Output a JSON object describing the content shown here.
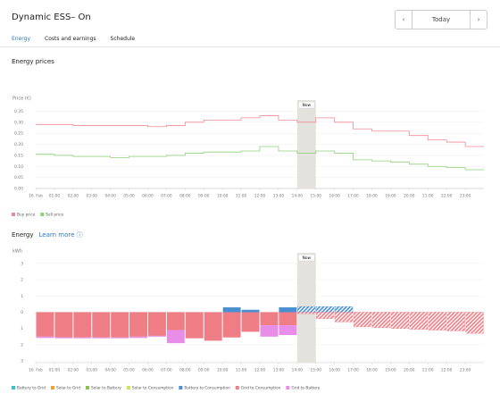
{
  "header": {
    "title": "Dynamic ESS– On",
    "prev": "‹",
    "date": "Today",
    "next": "›"
  },
  "tabs": [
    "Energy",
    "Costs and earnings",
    "Schedule"
  ],
  "sections": {
    "prices": "Energy prices",
    "energy": "Energy",
    "learn_more": "Learn more ⓘ"
  },
  "chart_data": [
    {
      "type": "line",
      "ylabel": "Price (€)",
      "now": {
        "label": "Now",
        "x": 14
      },
      "x": [
        0,
        1,
        2,
        3,
        4,
        5,
        6,
        7,
        8,
        9,
        10,
        11,
        12,
        13,
        14,
        15,
        16,
        17,
        18,
        19,
        20,
        21,
        22,
        23
      ],
      "xlim": [
        0,
        24
      ],
      "xticks": [
        {
          "value": 0,
          "label": "16. Feb"
        },
        {
          "value": 1,
          "label": "01:00"
        },
        {
          "value": 2,
          "label": "02:00"
        },
        {
          "value": 3,
          "label": "03:00"
        },
        {
          "value": 4,
          "label": "04:00"
        },
        {
          "value": 5,
          "label": "05:00"
        },
        {
          "value": 6,
          "label": "06:00"
        },
        {
          "value": 7,
          "label": "07:00"
        },
        {
          "value": 8,
          "label": "08:00"
        },
        {
          "value": 9,
          "label": "09:00"
        },
        {
          "value": 10,
          "label": "10:00"
        },
        {
          "value": 11,
          "label": "11:00"
        },
        {
          "value": 12,
          "label": "12:00"
        },
        {
          "value": 13,
          "label": "13:00"
        },
        {
          "value": 14,
          "label": "14:00"
        },
        {
          "value": 15,
          "label": "15:00"
        },
        {
          "value": 16,
          "label": "16:00"
        },
        {
          "value": 17,
          "label": "17:00"
        },
        {
          "value": 18,
          "label": "18:00"
        },
        {
          "value": 19,
          "label": "19:00"
        },
        {
          "value": 20,
          "label": "20:00"
        },
        {
          "value": 21,
          "label": "21:00"
        },
        {
          "value": 22,
          "label": "22:00"
        },
        {
          "value": 23,
          "label": "23:00"
        }
      ],
      "ylim": [
        0,
        0.36
      ],
      "yticks": [
        {
          "value": 0,
          "label": "0.00"
        },
        {
          "value": 0.05,
          "label": "0.05"
        },
        {
          "value": 0.1,
          "label": "0.10"
        },
        {
          "value": 0.15,
          "label": "0.15"
        },
        {
          "value": 0.2,
          "label": "0.20"
        },
        {
          "value": 0.25,
          "label": "0.25"
        },
        {
          "value": 0.3,
          "label": "0.30"
        },
        {
          "value": 0.35,
          "label": "0.35"
        }
      ],
      "grid": true,
      "series": [
        {
          "name": "Buy price",
          "color": "#f08a96",
          "values": [
            0.29,
            0.29,
            0.285,
            0.285,
            0.285,
            0.285,
            0.28,
            0.285,
            0.3,
            0.31,
            0.31,
            0.32,
            0.33,
            0.31,
            0.3,
            0.32,
            0.3,
            0.27,
            0.26,
            0.26,
            0.24,
            0.22,
            0.21,
            0.19
          ]
        },
        {
          "name": "Sell price",
          "color": "#8fd07a",
          "values": [
            0.155,
            0.15,
            0.145,
            0.145,
            0.14,
            0.145,
            0.145,
            0.15,
            0.16,
            0.165,
            0.165,
            0.17,
            0.19,
            0.17,
            0.16,
            0.17,
            0.16,
            0.13,
            0.125,
            0.12,
            0.11,
            0.1,
            0.095,
            0.085
          ]
        }
      ]
    },
    {
      "type": "bar",
      "stacked": true,
      "ylabel": "kWh",
      "now": {
        "label": "Now",
        "x": 14
      },
      "x": [
        0,
        1,
        2,
        3,
        4,
        5,
        6,
        7,
        8,
        9,
        10,
        11,
        12,
        13,
        14,
        15,
        16,
        17,
        18,
        19,
        20,
        21,
        22,
        23
      ],
      "xlim": [
        0,
        24
      ],
      "xticks": [
        {
          "value": 0,
          "label": "16. Feb"
        },
        {
          "value": 1,
          "label": "01:00"
        },
        {
          "value": 2,
          "label": "02:00"
        },
        {
          "value": 3,
          "label": "03:00"
        },
        {
          "value": 4,
          "label": "04:00"
        },
        {
          "value": 5,
          "label": "05:00"
        },
        {
          "value": 6,
          "label": "06:00"
        },
        {
          "value": 7,
          "label": "07:00"
        },
        {
          "value": 8,
          "label": "08:00"
        },
        {
          "value": 9,
          "label": "09:00"
        },
        {
          "value": 10,
          "label": "10:00"
        },
        {
          "value": 11,
          "label": "11:00"
        },
        {
          "value": 12,
          "label": "12:00"
        },
        {
          "value": 13,
          "label": "13:00"
        },
        {
          "value": 14,
          "label": "14:00"
        },
        {
          "value": 15,
          "label": "15:00"
        },
        {
          "value": 16,
          "label": "16:00"
        },
        {
          "value": 17,
          "label": "17:00"
        },
        {
          "value": 18,
          "label": "18:00"
        },
        {
          "value": 19,
          "label": "19:00"
        },
        {
          "value": 20,
          "label": "20:00"
        },
        {
          "value": 21,
          "label": "21:00"
        },
        {
          "value": 22,
          "label": "22:00"
        },
        {
          "value": 23,
          "label": "23:00"
        }
      ],
      "ylim": [
        -3.1,
        3.1
      ],
      "yticks": [
        {
          "value": -3,
          "label": "3"
        },
        {
          "value": -2,
          "label": "2"
        },
        {
          "value": -1,
          "label": "1"
        },
        0,
        1,
        2,
        3
      ],
      "grid": true,
      "series": [
        {
          "name": "Battery to Grid",
          "color": "#2ec4d6",
          "values": [
            0,
            0,
            0,
            0,
            0,
            0,
            0,
            0,
            0,
            0,
            0,
            0,
            0,
            0,
            0,
            0,
            0,
            0,
            0,
            0,
            0,
            0,
            0,
            0
          ]
        },
        {
          "name": "Solar to Grid",
          "color": "#f0a030",
          "values": [
            0,
            0,
            0,
            0,
            0,
            0,
            0,
            0,
            0,
            0,
            0,
            0,
            0,
            0,
            0,
            0,
            0,
            0,
            0,
            0,
            0,
            0,
            0,
            0
          ]
        },
        {
          "name": "Solar to Battery",
          "color": "#8bc34a",
          "values": [
            0,
            0,
            0,
            0,
            0,
            0,
            0,
            0,
            0,
            0,
            0,
            0,
            0,
            0,
            0,
            0,
            0,
            0,
            0,
            0,
            0,
            0,
            0,
            0
          ]
        },
        {
          "name": "Solar to Consumption",
          "color": "#d4e157",
          "values": [
            0,
            0,
            0,
            0,
            0,
            0,
            0,
            0,
            0,
            0,
            0,
            0,
            0,
            0,
            0,
            0,
            0,
            0,
            0,
            0,
            0,
            0,
            0,
            0
          ]
        },
        {
          "name": "Battery to Consumption",
          "color": "#4a8fd0",
          "values": [
            0,
            0,
            0,
            0,
            0,
            0,
            0,
            0,
            0,
            0,
            0.3,
            0.15,
            0,
            0.3,
            0.35,
            0.35,
            0.35,
            0,
            0,
            0,
            0,
            0,
            0,
            0
          ]
        },
        {
          "name": "Grid to Consumption",
          "color": "#ef7d85",
          "values": [
            -1.5,
            -1.55,
            -1.55,
            -1.55,
            -1.55,
            -1.5,
            -1.45,
            -1.1,
            -1.6,
            -1.75,
            -1.55,
            -1.2,
            -0.8,
            -0.8,
            -0.1,
            -0.4,
            -0.6,
            -0.9,
            -0.95,
            -1,
            -1.05,
            -1.1,
            -1.15,
            -1.3
          ]
        },
        {
          "name": "Grid to Battery",
          "color": "#e88de8",
          "values": [
            -0.08,
            -0.05,
            -0.05,
            -0.05,
            -0.05,
            -0.08,
            -0.05,
            -0.8,
            0,
            0,
            0,
            0,
            -0.7,
            -0.6,
            0,
            0,
            0,
            0,
            0,
            0,
            0,
            0,
            0,
            0
          ]
        }
      ]
    }
  ]
}
